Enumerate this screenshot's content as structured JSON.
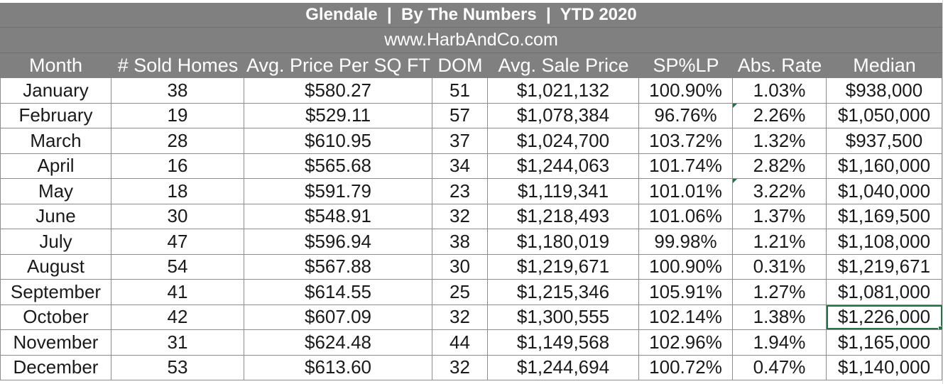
{
  "title": "Glendale  |  By The Numbers  |  YTD 2020",
  "website": "www.HarbAndCo.com",
  "headers": [
    "Month",
    "# Sold Homes",
    "Avg. Price Per SQ FT",
    "DOM",
    "Avg. Sale Price",
    "SP%LP",
    "Abs. Rate",
    "Median"
  ],
  "rows": [
    [
      "January",
      "38",
      "$580.27",
      "51",
      "$1,021,132",
      "100.90%",
      "1.03%",
      "$938,000"
    ],
    [
      "February",
      "19",
      "$529.11",
      "57",
      "$1,078,384",
      "96.76%",
      "2.26%",
      "$1,050,000"
    ],
    [
      "March",
      "28",
      "$610.95",
      "37",
      "$1,024,700",
      "103.72%",
      "1.32%",
      "$937,500"
    ],
    [
      "April",
      "16",
      "$565.68",
      "34",
      "$1,244,063",
      "101.74%",
      "2.82%",
      "$1,160,000"
    ],
    [
      "May",
      "18",
      "$591.79",
      "23",
      "$1,119,341",
      "101.01%",
      "3.22%",
      "$1,040,000"
    ],
    [
      "June",
      "30",
      "$548.91",
      "32",
      "$1,218,493",
      "101.06%",
      "1.37%",
      "$1,169,500"
    ],
    [
      "July",
      "47",
      "$596.94",
      "38",
      "$1,180,019",
      "99.98%",
      "1.21%",
      "$1,108,000"
    ],
    [
      "August",
      "54",
      "$567.88",
      "30",
      "$1,219,671",
      "100.90%",
      "0.31%",
      "$1,219,671"
    ],
    [
      "September",
      "41",
      "$614.55",
      "25",
      "$1,215,346",
      "105.91%",
      "1.27%",
      "$1,081,000"
    ],
    [
      "October",
      "42",
      "$607.09",
      "32",
      "$1,300,555",
      "102.14%",
      "1.38%",
      "$1,226,000"
    ],
    [
      "November",
      "31",
      "$624.48",
      "44",
      "$1,149,568",
      "102.96%",
      "1.94%",
      "$1,165,000"
    ],
    [
      "December",
      "53",
      "$613.60",
      "32",
      "$1,244,694",
      "100.72%",
      "0.47%",
      "$1,140,000"
    ]
  ],
  "colors": {
    "header_bg": "#808080",
    "header_text": "#ffffff",
    "selection": "#217346",
    "gridline": "#8c8c8c"
  }
}
